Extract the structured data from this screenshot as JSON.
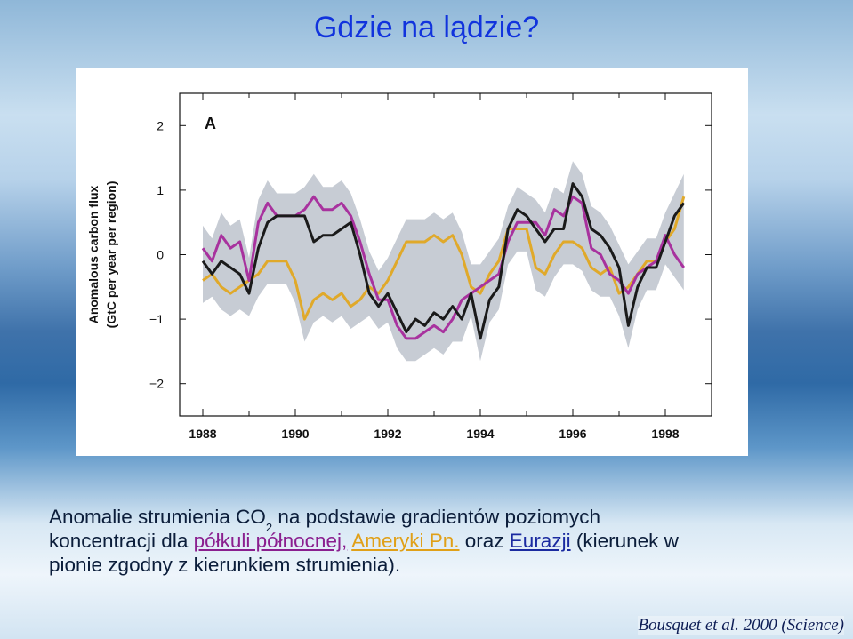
{
  "slide": {
    "title": "Gdzie na lądzie?",
    "caption_line1_a": "Anomalie strumienia CO",
    "caption_sub": "2",
    "caption_line1_b": " na podstawie gradientów poziomych",
    "caption_line2_a": "koncentracji dla ",
    "caption_north": "półkuli północnej,",
    "caption_line2_b": " ",
    "caption_amer": "Ameryki Pn.",
    "caption_line2_c": " oraz ",
    "caption_eur": "Eurazji",
    "caption_line2_d": " (kierunek w",
    "caption_line3": "pionie zgodny z kierunkiem strumienia).",
    "citation": "Bousquet et al. 2000 (Science)"
  },
  "colors": {
    "title": "#1133dd",
    "northern_hemisphere": "#a8329e",
    "north_america": "#e0a92a",
    "eurasia": "#1a1a1a",
    "uncertainty_band": "#c7ccd4"
  },
  "chart_data": {
    "type": "line",
    "panel_label": "A",
    "ylabel_line1": "Anomalous carbon flux",
    "ylabel_line2": "(GtC per year per region)",
    "xlabel": "",
    "xlim": [
      1987.5,
      1999.0
    ],
    "ylim": [
      -2.5,
      2.5
    ],
    "xticks": [
      1988,
      1990,
      1992,
      1994,
      1996,
      1998
    ],
    "yticks": [
      2,
      1,
      0,
      -1,
      -2
    ],
    "ytick_labels": [
      "2",
      "1",
      "0",
      "−1",
      "−2"
    ],
    "grid": false,
    "x": [
      1988.0,
      1988.2,
      1988.4,
      1988.6,
      1988.8,
      1989.0,
      1989.2,
      1989.4,
      1989.6,
      1989.8,
      1990.0,
      1990.2,
      1990.4,
      1990.6,
      1990.8,
      1991.0,
      1991.2,
      1991.4,
      1991.6,
      1991.8,
      1992.0,
      1992.2,
      1992.4,
      1992.6,
      1992.8,
      1993.0,
      1993.2,
      1993.4,
      1993.6,
      1993.8,
      1994.0,
      1994.2,
      1994.4,
      1994.6,
      1994.8,
      1995.0,
      1995.2,
      1995.4,
      1995.6,
      1995.8,
      1996.0,
      1996.2,
      1996.4,
      1996.6,
      1996.8,
      1997.0,
      1997.2,
      1997.4,
      1997.6,
      1997.8,
      1998.0,
      1998.2,
      1998.4
    ],
    "series": [
      {
        "key": "eurasia",
        "values": [
          -0.1,
          -0.3,
          -0.1,
          -0.2,
          -0.3,
          -0.6,
          0.1,
          0.5,
          0.6,
          0.6,
          0.6,
          0.6,
          0.2,
          0.3,
          0.3,
          0.4,
          0.5,
          0.0,
          -0.6,
          -0.8,
          -0.6,
          -0.9,
          -1.2,
          -1.0,
          -1.1,
          -0.9,
          -1.0,
          -0.8,
          -1.0,
          -0.6,
          -1.3,
          -0.7,
          -0.5,
          0.4,
          0.7,
          0.6,
          0.4,
          0.2,
          0.4,
          0.4,
          1.1,
          0.9,
          0.4,
          0.3,
          0.1,
          -0.2,
          -1.1,
          -0.5,
          -0.2,
          -0.2,
          0.2,
          0.6,
          0.8
        ]
      },
      {
        "key": "northern_hemisphere",
        "values": [
          0.1,
          -0.1,
          0.3,
          0.1,
          0.2,
          -0.4,
          0.5,
          0.8,
          0.6,
          0.6,
          0.6,
          0.7,
          0.9,
          0.7,
          0.7,
          0.8,
          0.6,
          0.2,
          -0.3,
          -0.7,
          -0.7,
          -1.1,
          -1.3,
          -1.3,
          -1.2,
          -1.1,
          -1.2,
          -1.0,
          -0.7,
          -0.6,
          -0.5,
          -0.4,
          -0.3,
          0.2,
          0.5,
          0.5,
          0.5,
          0.3,
          0.7,
          0.6,
          0.9,
          0.8,
          0.1,
          0.0,
          -0.3,
          -0.4,
          -0.6,
          -0.3,
          -0.2,
          -0.1,
          0.3,
          0.0,
          -0.2
        ]
      },
      {
        "key": "north_america",
        "values": [
          -0.4,
          -0.3,
          -0.5,
          -0.6,
          -0.5,
          -0.4,
          -0.3,
          -0.1,
          -0.1,
          -0.1,
          -0.4,
          -1.0,
          -0.7,
          -0.6,
          -0.7,
          -0.6,
          -0.8,
          -0.7,
          -0.5,
          -0.6,
          -0.4,
          -0.1,
          0.2,
          0.2,
          0.2,
          0.3,
          0.2,
          0.3,
          0.0,
          -0.5,
          -0.6,
          -0.3,
          -0.1,
          0.4,
          0.4,
          0.4,
          -0.2,
          -0.3,
          0.0,
          0.2,
          0.2,
          0.1,
          -0.2,
          -0.3,
          -0.2,
          -0.6,
          -0.5,
          -0.3,
          -0.1,
          -0.1,
          0.2,
          0.4,
          0.9
        ]
      }
    ]
  }
}
